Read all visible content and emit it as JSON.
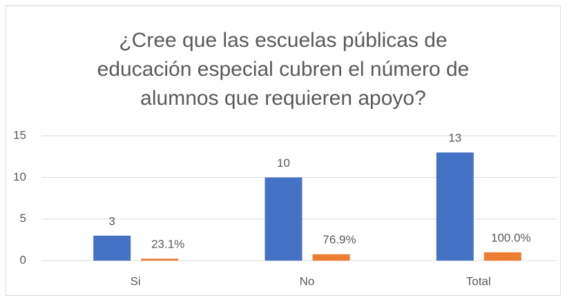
{
  "chart_data": {
    "type": "bar",
    "title": "¿Cree que las escuelas públicas de educación especial cubren el número de alumnos que requieren apoyo?",
    "categories": [
      "Si",
      "No",
      "Total"
    ],
    "series": [
      {
        "color": "#4472c4",
        "values": [
          3,
          10,
          13
        ]
      },
      {
        "color": "#ed7d31",
        "values": [
          0.231,
          0.769,
          1.0
        ],
        "value_labels": [
          "23.1%",
          "76.9%",
          "100.0%"
        ]
      }
    ],
    "ylim": [
      0,
      15
    ],
    "yticks": [
      0,
      5,
      10,
      15
    ],
    "grid": true
  }
}
